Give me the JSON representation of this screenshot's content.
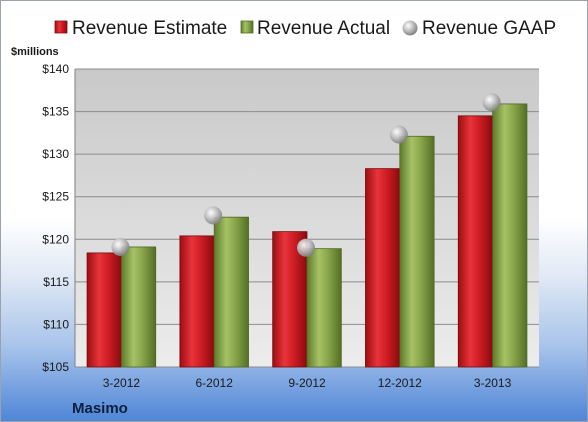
{
  "company": "Masimo",
  "chart_data": {
    "type": "bar",
    "title": "",
    "ylabel": "$millions",
    "xlabel": "",
    "categories": [
      "3-2012",
      "6-2012",
      "9-2012",
      "12-2012",
      "3-2013"
    ],
    "series": [
      {
        "name": "Revenue Estimate",
        "kind": "bar",
        "color": "#d42027",
        "values": [
          118.4,
          120.4,
          120.9,
          128.3,
          134.5
        ]
      },
      {
        "name": "Revenue Actual",
        "kind": "bar",
        "color": "#86a348",
        "values": [
          119.1,
          122.6,
          118.9,
          132.1,
          135.9
        ]
      },
      {
        "name": "Revenue GAAP",
        "kind": "marker",
        "color": "#a6a6a6",
        "values": [
          119.1,
          122.8,
          119.0,
          132.3,
          136.1
        ]
      }
    ],
    "ylim": [
      105,
      140
    ],
    "yticks": [
      105,
      110,
      115,
      120,
      125,
      130,
      135,
      140
    ],
    "ytick_labels": [
      "$105",
      "$110",
      "$115",
      "$120",
      "$125",
      "$130",
      "$135",
      "$140"
    ],
    "grid": true,
    "legend_position": "top"
  }
}
